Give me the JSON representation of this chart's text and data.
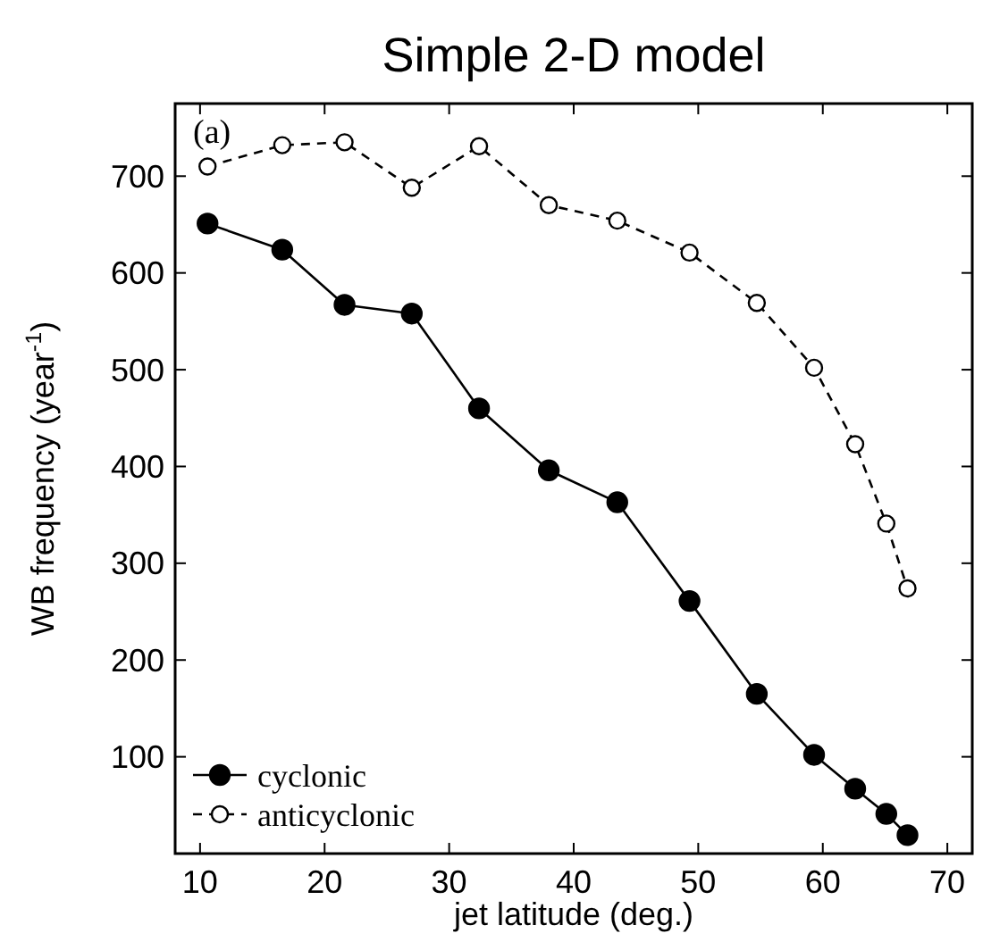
{
  "chart_data": {
    "type": "line",
    "title": "Simple 2-D model",
    "xlabel": "jet latitude (deg.)",
    "ylabel": "WB frequency (year$^{-1}$)",
    "annotations": [
      "(a)"
    ],
    "xlim": [
      8,
      72
    ],
    "xticks": [
      10,
      20,
      30,
      40,
      50,
      60,
      70
    ],
    "ylim": [
      0,
      775
    ],
    "yticks": [
      100,
      200,
      300,
      400,
      500,
      600,
      700
    ],
    "grid": false,
    "legend": "bottom left",
    "marker": "circle",
    "series": [
      {
        "name": "cyclonic",
        "color": "#000000",
        "line_style": "solid",
        "x": [
          10.6,
          16.6,
          21.6,
          27.0,
          32.4,
          38.0,
          43.5,
          49.3,
          54.7,
          59.3,
          62.6,
          65.1,
          66.8
        ],
        "values": [
          651,
          624,
          567,
          558,
          460,
          396,
          363,
          261,
          165,
          102,
          67,
          41,
          19
        ]
      },
      {
        "name": "anticyclonic",
        "color": "#000000",
        "line_style": "dashed",
        "x": [
          10.6,
          16.6,
          21.6,
          27.0,
          32.4,
          38.0,
          43.5,
          49.3,
          54.7,
          59.3,
          62.6,
          65.1,
          66.8
        ],
        "values": [
          710,
          732,
          735,
          688,
          731,
          670,
          654,
          621,
          569,
          502,
          423,
          341,
          274
        ]
      }
    ]
  }
}
